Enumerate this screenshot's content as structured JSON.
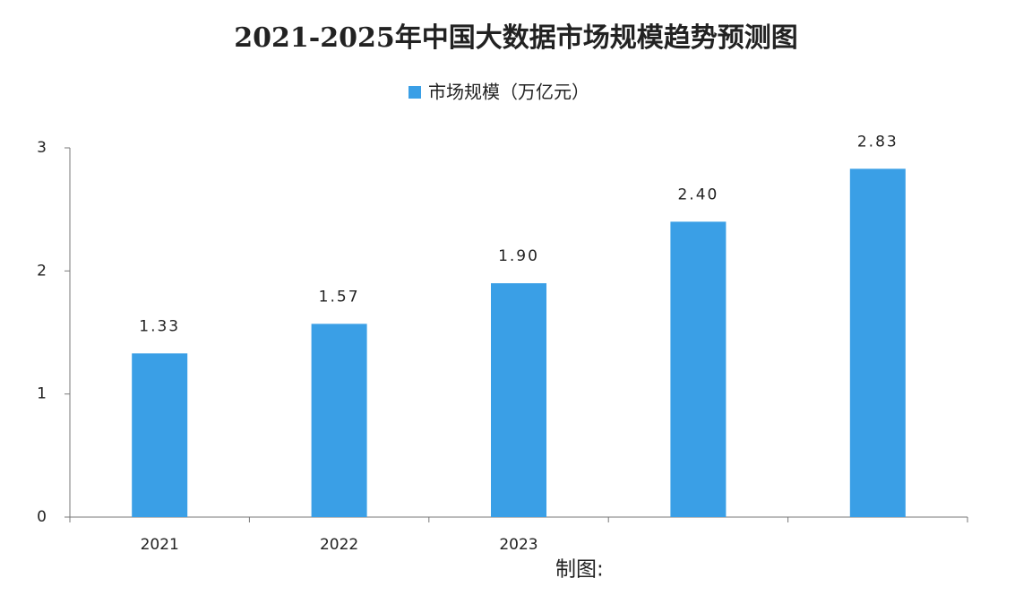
{
  "chart_data": {
    "type": "bar",
    "title": "2021-2025年中国大数据市场规模趋势预测图",
    "categories": [
      "2021",
      "2022",
      "2023",
      null,
      null
    ],
    "series": [
      {
        "name": "市场规模（万亿元）",
        "color": "#3a9fe6",
        "values": [
          1.33,
          1.57,
          1.9,
          2.4,
          2.83
        ],
        "value_labels": [
          "1.33",
          "1.57",
          "1.90",
          "2.40",
          "2.83"
        ]
      }
    ],
    "ylim": [
      0,
      3
    ],
    "yticks": [
      0,
      1,
      2,
      3
    ],
    "annotation": "制图:"
  }
}
